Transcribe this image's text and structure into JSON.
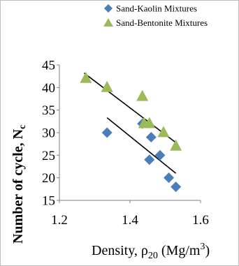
{
  "chart_data": {
    "type": "scatter",
    "xlabel": "Density, ρ20 (Mg/m3)",
    "xlabel_parts": {
      "main": "Density, ρ",
      "sub": "20",
      "unit": " (Mg/m",
      "sup": "3",
      "close": ")"
    },
    "ylabel": "Number of cycle, Nc",
    "ylabel_parts": {
      "main": "Number of cycle, N",
      "sub": "c"
    },
    "xlim": [
      1.2,
      1.6
    ],
    "ylim": [
      15,
      45
    ],
    "x_ticks": [
      "1.2",
      "1.4",
      "1.6"
    ],
    "y_ticks": [
      "15",
      "20",
      "25",
      "30",
      "35",
      "40",
      "45"
    ],
    "grid": false,
    "legend_position": "top-right",
    "series": [
      {
        "name": "Sand-Kaolin Mixtures",
        "marker": "diamond",
        "color": "#4a7ebb",
        "points": [
          {
            "x": 1.335,
            "y": 30
          },
          {
            "x": 1.435,
            "y": 32
          },
          {
            "x": 1.455,
            "y": 24
          },
          {
            "x": 1.46,
            "y": 29
          },
          {
            "x": 1.485,
            "y": 25
          },
          {
            "x": 1.51,
            "y": 20
          },
          {
            "x": 1.53,
            "y": 18
          }
        ],
        "trendline": {
          "x": [
            1.335,
            1.53
          ],
          "y": [
            33.3,
            21.0
          ]
        }
      },
      {
        "name": "Sand-Bentonite Mixtures",
        "marker": "triangle",
        "color": "#9bbb59",
        "points": [
          {
            "x": 1.275,
            "y": 42
          },
          {
            "x": 1.335,
            "y": 40
          },
          {
            "x": 1.435,
            "y": 38
          },
          {
            "x": 1.44,
            "y": 32
          },
          {
            "x": 1.455,
            "y": 32
          },
          {
            "x": 1.495,
            "y": 30
          },
          {
            "x": 1.53,
            "y": 27
          }
        ],
        "trendline": {
          "x": [
            1.27,
            1.53
          ],
          "y": [
            43.2,
            27.8
          ]
        }
      }
    ]
  }
}
